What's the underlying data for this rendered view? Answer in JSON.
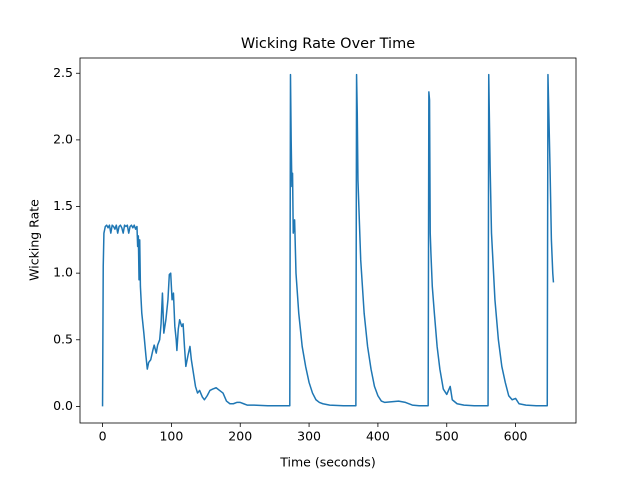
{
  "chart_data": {
    "type": "line",
    "title": "Wicking Rate Over Time",
    "x_label": "Time (seconds)",
    "y_label": "Wicking Rate",
    "color": "#1f77b4",
    "x": [
      0,
      1,
      2,
      4,
      6,
      8,
      10,
      12,
      14,
      16,
      18,
      20,
      22,
      24,
      26,
      28,
      30,
      32,
      34,
      36,
      38,
      40,
      42,
      44,
      46,
      48,
      50,
      51,
      52,
      53,
      54,
      55,
      57,
      60,
      63,
      65,
      67,
      70,
      73,
      75,
      78,
      80,
      83,
      85,
      87,
      89,
      92,
      95,
      97,
      99,
      101,
      103,
      105,
      107,
      108,
      110,
      112,
      115,
      117,
      119,
      121,
      124,
      127,
      129,
      132,
      135,
      138,
      141,
      145,
      148,
      152,
      156,
      160,
      165,
      170,
      175,
      180,
      185,
      190,
      195,
      200,
      205,
      210,
      220,
      240,
      255,
      272,
      273,
      274,
      275,
      276,
      277,
      279,
      281,
      285,
      290,
      295,
      300,
      305,
      310,
      315,
      320,
      330,
      350,
      368,
      369,
      370,
      371,
      373,
      375,
      380,
      385,
      390,
      395,
      400,
      405,
      410,
      420,
      430,
      440,
      450,
      460,
      473,
      474,
      475,
      476,
      477,
      479,
      482,
      486,
      490,
      495,
      500,
      505,
      508,
      515,
      525,
      540,
      560,
      561,
      563,
      565,
      570,
      575,
      580,
      585,
      590,
      595,
      600,
      605,
      615,
      630,
      646,
      647,
      650,
      652,
      654,
      655
    ],
    "values": [
      0,
      1.05,
      1.3,
      1.35,
      1.36,
      1.34,
      1.36,
      1.3,
      1.36,
      1.35,
      1.33,
      1.36,
      1.3,
      1.35,
      1.36,
      1.34,
      1.3,
      1.36,
      1.35,
      1.36,
      1.3,
      1.35,
      1.36,
      1.34,
      1.36,
      1.33,
      1.35,
      1.2,
      1.28,
      0.95,
      1.25,
      0.9,
      0.7,
      0.55,
      0.38,
      0.28,
      0.33,
      0.35,
      0.42,
      0.46,
      0.4,
      0.46,
      0.5,
      0.62,
      0.85,
      0.55,
      0.65,
      0.8,
      0.99,
      1.0,
      0.8,
      0.85,
      0.6,
      0.5,
      0.42,
      0.58,
      0.65,
      0.6,
      0.62,
      0.45,
      0.3,
      0.38,
      0.45,
      0.35,
      0.25,
      0.15,
      0.1,
      0.12,
      0.07,
      0.05,
      0.08,
      0.12,
      0.13,
      0.14,
      0.12,
      0.1,
      0.04,
      0.02,
      0.02,
      0.03,
      0.03,
      0.02,
      0.01,
      0.01,
      0.005,
      0.005,
      0.005,
      2.49,
      2.0,
      1.65,
      1.75,
      1.3,
      1.4,
      1.0,
      0.7,
      0.45,
      0.3,
      0.18,
      0.1,
      0.05,
      0.03,
      0.02,
      0.01,
      0.005,
      0.005,
      2.49,
      2.2,
      1.7,
      1.4,
      1.1,
      0.7,
      0.45,
      0.28,
      0.15,
      0.08,
      0.04,
      0.03,
      0.035,
      0.04,
      0.03,
      0.01,
      0.005,
      0.005,
      2.36,
      2.3,
      1.3,
      1.15,
      0.9,
      0.7,
      0.45,
      0.28,
      0.13,
      0.09,
      0.15,
      0.05,
      0.02,
      0.01,
      0.005,
      0.005,
      2.49,
      1.8,
      1.3,
      0.8,
      0.5,
      0.3,
      0.18,
      0.08,
      0.05,
      0.06,
      0.02,
      0.01,
      0.005,
      0.005,
      2.49,
      1.8,
      1.25,
      1.0,
      0.93
    ],
    "xlim": [
      -32.75,
      687.75
    ],
    "ylim": [
      -0.1245,
      2.6145
    ],
    "xticks": [
      0,
      100,
      200,
      300,
      400,
      500,
      600
    ],
    "yticks": [
      {
        "value": 0,
        "label": "0.0"
      },
      0.5,
      {
        "value": 1,
        "label": "1.0"
      },
      1.5,
      {
        "value": 2,
        "label": "2.0"
      },
      2.5
    ]
  }
}
